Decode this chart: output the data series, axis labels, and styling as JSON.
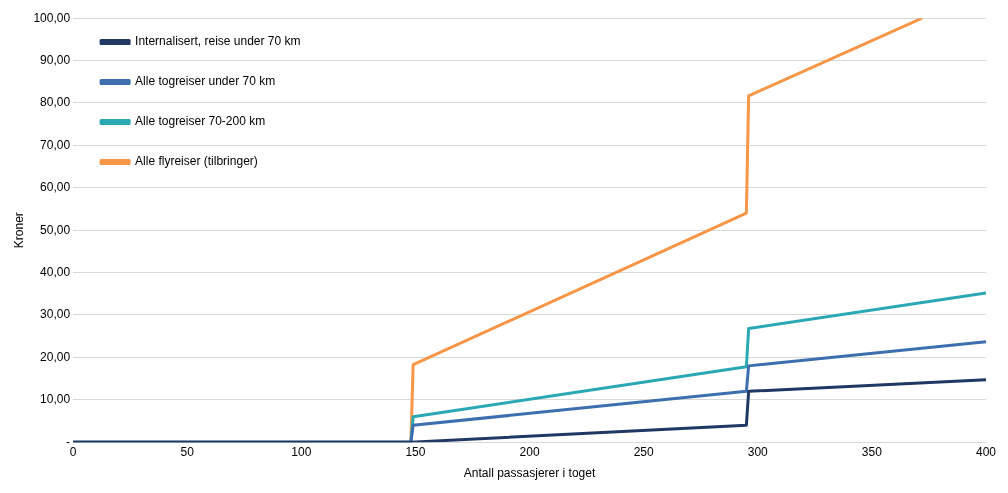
{
  "chart_data": {
    "type": "line",
    "xlabel": "Antall passasjerer i toget",
    "ylabel": "Kroner",
    "xlim": [
      0,
      400
    ],
    "xticks": [
      0,
      50,
      100,
      150,
      200,
      250,
      300,
      350,
      400
    ],
    "ylim": [
      0,
      100
    ],
    "yticks": [
      {
        "value": 0,
        "label": "-"
      },
      {
        "value": 10,
        "label": "10,00"
      },
      {
        "value": 20,
        "label": "20,00"
      },
      {
        "value": 30,
        "label": "30,00"
      },
      {
        "value": 40,
        "label": "40,00"
      },
      {
        "value": 50,
        "label": "50,00"
      },
      {
        "value": 60,
        "label": "60,00"
      },
      {
        "value": 70,
        "label": "70,00"
      },
      {
        "value": 80,
        "label": "80,00"
      },
      {
        "value": 90,
        "label": "90,00"
      },
      {
        "value": 100,
        "label": "100,00"
      }
    ],
    "grid": "y",
    "legend": "top left",
    "marker": "none",
    "line_style": "solid",
    "series": [
      {
        "name": "Internalisert, reise under 70 km",
        "color": "#1f3864",
        "x": [
          0,
          148,
          295,
          296,
          400
        ],
        "values": [
          0,
          0,
          4,
          12,
          14.7
        ]
      },
      {
        "name": "Alle togreiser under 70 km",
        "color": "#3d6fb0",
        "x": [
          0,
          148,
          149,
          295,
          296,
          400
        ],
        "values": [
          0,
          0,
          4,
          12,
          18,
          23.7
        ]
      },
      {
        "name": "Alle togreiser 70-200 km",
        "color": "#2aa8b4",
        "x": [
          0,
          148,
          149,
          295,
          296,
          400
        ],
        "values": [
          0,
          0,
          6,
          17.8,
          26.8,
          35.2
        ]
      },
      {
        "name": "Alle flyreiser (tilbringer)",
        "color": "#f79646",
        "x": [
          0,
          148,
          149,
          295,
          296,
          372
        ],
        "values": [
          0,
          0,
          18.3,
          54,
          81.7,
          100
        ]
      }
    ]
  }
}
